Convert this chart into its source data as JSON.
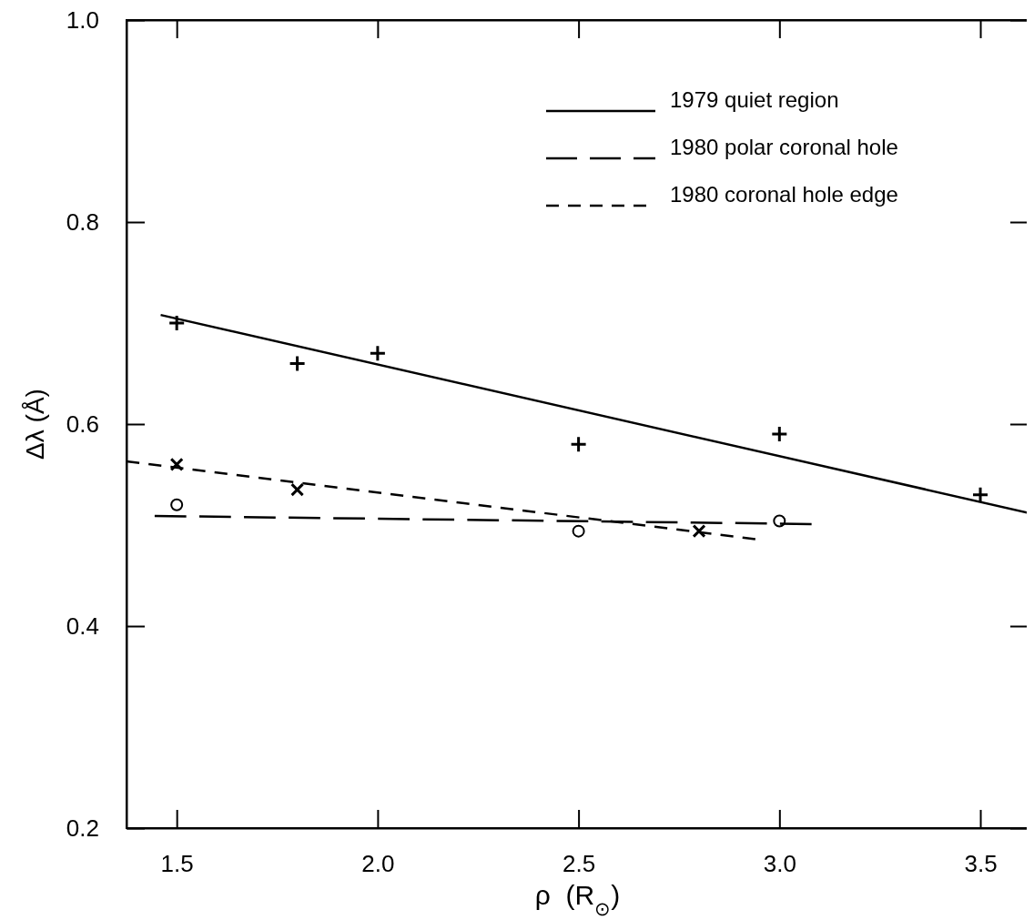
{
  "chart_data": {
    "type": "scatter",
    "xlabel": "ρ  (R$_{⊙}$)",
    "ylabel": "Δλ (Å)",
    "xlim": [
      1.375,
      3.62
    ],
    "xticks": [
      {
        "value": 1.5,
        "label": "1.5"
      },
      {
        "value": 2.0,
        "label": "2.0"
      },
      {
        "value": 2.5,
        "label": "2.5"
      },
      {
        "value": 3.0,
        "label": "3.0"
      },
      {
        "value": 3.5,
        "label": "3.5"
      }
    ],
    "ylim": [
      0.2,
      1.0
    ],
    "yticks": [
      {
        "value": 0.2,
        "label": "0.2"
      },
      {
        "value": 0.4,
        "label": "0.4"
      },
      {
        "value": 0.6,
        "label": "0.6"
      },
      {
        "value": 0.8,
        "label": "0.8"
      },
      {
        "value": 1.0,
        "label": "1.0"
      }
    ],
    "grid": false,
    "legend": "top right",
    "series": [
      {
        "name": "1979 quiet region",
        "type": "line",
        "color": "#000000",
        "line_style": "solid",
        "x": [
          1.46,
          3.62
        ],
        "values": [
          0.708,
          0.512
        ]
      },
      {
        "name": "1980 polar coronal hole",
        "type": "line",
        "color": "#000000",
        "line_style": "dashed",
        "x": [
          1.445,
          3.08
        ],
        "values": [
          0.509,
          0.501
        ]
      },
      {
        "name": "1980 coronal hole edge",
        "type": "line",
        "color": "#000000",
        "line_style": "dotted",
        "x": [
          1.375,
          2.94
        ],
        "values": [
          0.563,
          0.486
        ]
      },
      {
        "type": "scatter",
        "color": "#000000",
        "marker": "cross",
        "x": [
          1.5,
          1.8,
          2.0,
          2.5,
          3.0,
          3.5
        ],
        "values": [
          0.7,
          0.66,
          0.67,
          0.58,
          0.59,
          0.53
        ]
      },
      {
        "type": "scatter",
        "color": "#000000",
        "marker": "x",
        "x": [
          1.5,
          1.8,
          2.8
        ],
        "values": [
          0.56,
          0.535,
          0.494
        ]
      },
      {
        "type": "scatter",
        "color": "#000000",
        "marker": "circle",
        "x": [
          1.5,
          2.5,
          3.0
        ],
        "values": [
          0.52,
          0.494,
          0.504
        ]
      }
    ]
  }
}
